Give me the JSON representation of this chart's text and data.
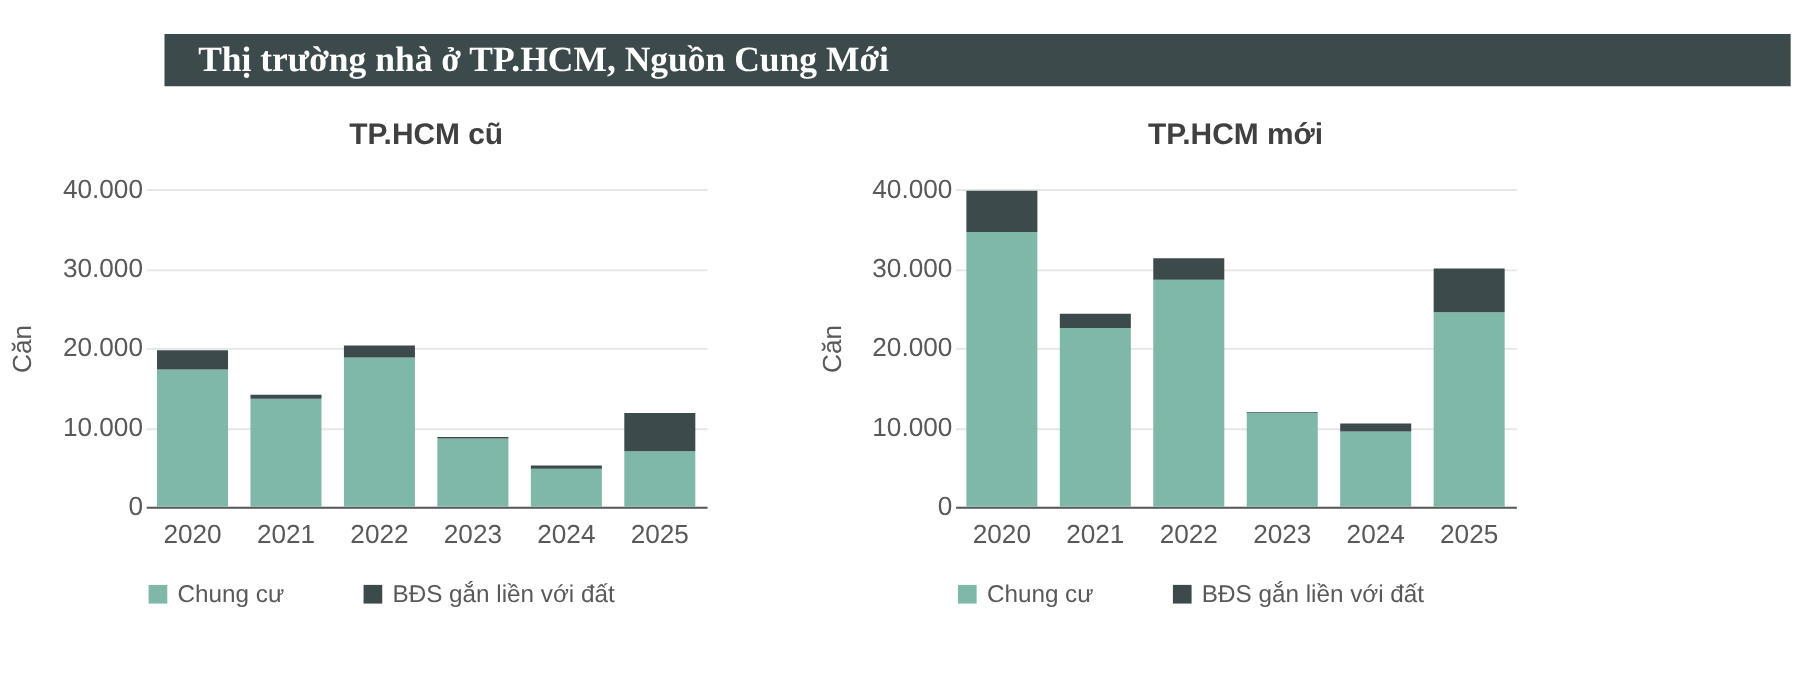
{
  "chart_data": [
    {
      "type": "other",
      "title": "Thị trường nhà ở TP.HCM, Nguồn Cung Mới"
    },
    {
      "type": "bar",
      "title": "TP.HCM cũ",
      "ylabel": "Căn",
      "stacked": true,
      "legend": "bottom",
      "grid": "y",
      "categories": [
        "2020",
        "2021",
        "2022",
        "2023",
        "2024",
        "2025"
      ],
      "series": [
        {
          "name": "Chung cư",
          "color": "#7fb8a8",
          "values": [
            17300,
            13600,
            18800,
            8600,
            4800,
            7000
          ]
        },
        {
          "name": "BĐS gắn liền với đất",
          "color": "#3d4a4b",
          "values": [
            2400,
            500,
            1500,
            200,
            400,
            4800
          ]
        }
      ],
      "ylim": [
        0,
        40000
      ],
      "yticks": [
        {
          "value": 0,
          "label": "0"
        },
        {
          "value": 10000,
          "label": "10.000"
        },
        {
          "value": 20000,
          "label": "20.000"
        },
        {
          "value": 30000,
          "label": "30.000"
        },
        {
          "value": 40000,
          "label": "40.000"
        }
      ]
    },
    {
      "type": "bar",
      "title": "TP.HCM mới",
      "ylabel": "Căn",
      "stacked": true,
      "legend": "bottom",
      "grid": "y",
      "categories": [
        "2020",
        "2021",
        "2022",
        "2023",
        "2024",
        "2025"
      ],
      "series": [
        {
          "name": "Chung cư",
          "color": "#7fb8a8",
          "values": [
            34600,
            22500,
            28600,
            11800,
            9500,
            24500
          ]
        },
        {
          "name": "BĐS gắn liền với đất",
          "color": "#3d4a4b",
          "values": [
            5200,
            1800,
            2700,
            100,
            1000,
            5500
          ]
        }
      ],
      "ylim": [
        0,
        40000
      ],
      "yticks": [
        {
          "value": 0,
          "label": "0"
        },
        {
          "value": 10000,
          "label": "10.000"
        },
        {
          "value": 20000,
          "label": "20.000"
        },
        {
          "value": 30000,
          "label": "30.000"
        },
        {
          "value": 40000,
          "label": "40.000"
        }
      ]
    }
  ]
}
